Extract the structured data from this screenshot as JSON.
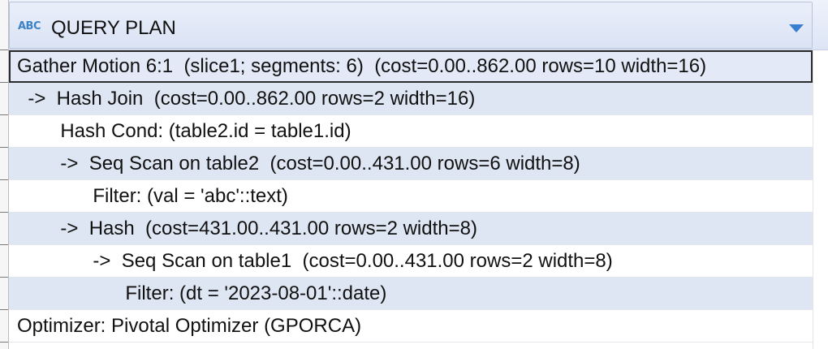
{
  "column": {
    "type_icon_text": "ABC",
    "type_icon": "text-type-icon",
    "title": "QUERY PLAN",
    "dropdown_icon": "chevron-down-icon"
  },
  "rows": [
    {
      "text": "Gather Motion 6:1  (slice1; segments: 6)  (cost=0.00..862.00 rows=10 width=16)",
      "indent": 0,
      "selected": true
    },
    {
      "text": "  ->  Hash Join  (cost=0.00..862.00 rows=2 width=16)",
      "indent": 0,
      "selected": false
    },
    {
      "text": "        Hash Cond: (table2.id = table1.id)",
      "indent": 0,
      "selected": false
    },
    {
      "text": "        ->  Seq Scan on table2  (cost=0.00..431.00 rows=6 width=8)",
      "indent": 0,
      "selected": false
    },
    {
      "text": "              Filter: (val = 'abc'::text)",
      "indent": 0,
      "selected": false
    },
    {
      "text": "        ->  Hash  (cost=431.00..431.00 rows=2 width=8)",
      "indent": 0,
      "selected": false
    },
    {
      "text": "              ->  Seq Scan on table1  (cost=0.00..431.00 rows=2 width=8)",
      "indent": 0,
      "selected": false
    },
    {
      "text": "                    Filter: (dt = '2023-08-01'::date)",
      "indent": 0,
      "selected": false
    },
    {
      "text": "Optimizer: Pivotal Optimizer (GPORCA)",
      "indent": 0,
      "selected": false
    }
  ],
  "colors": {
    "accent": "#3a7fcf",
    "row_alt": "#dfe6f3",
    "selection_border": "#2b2b2b"
  }
}
